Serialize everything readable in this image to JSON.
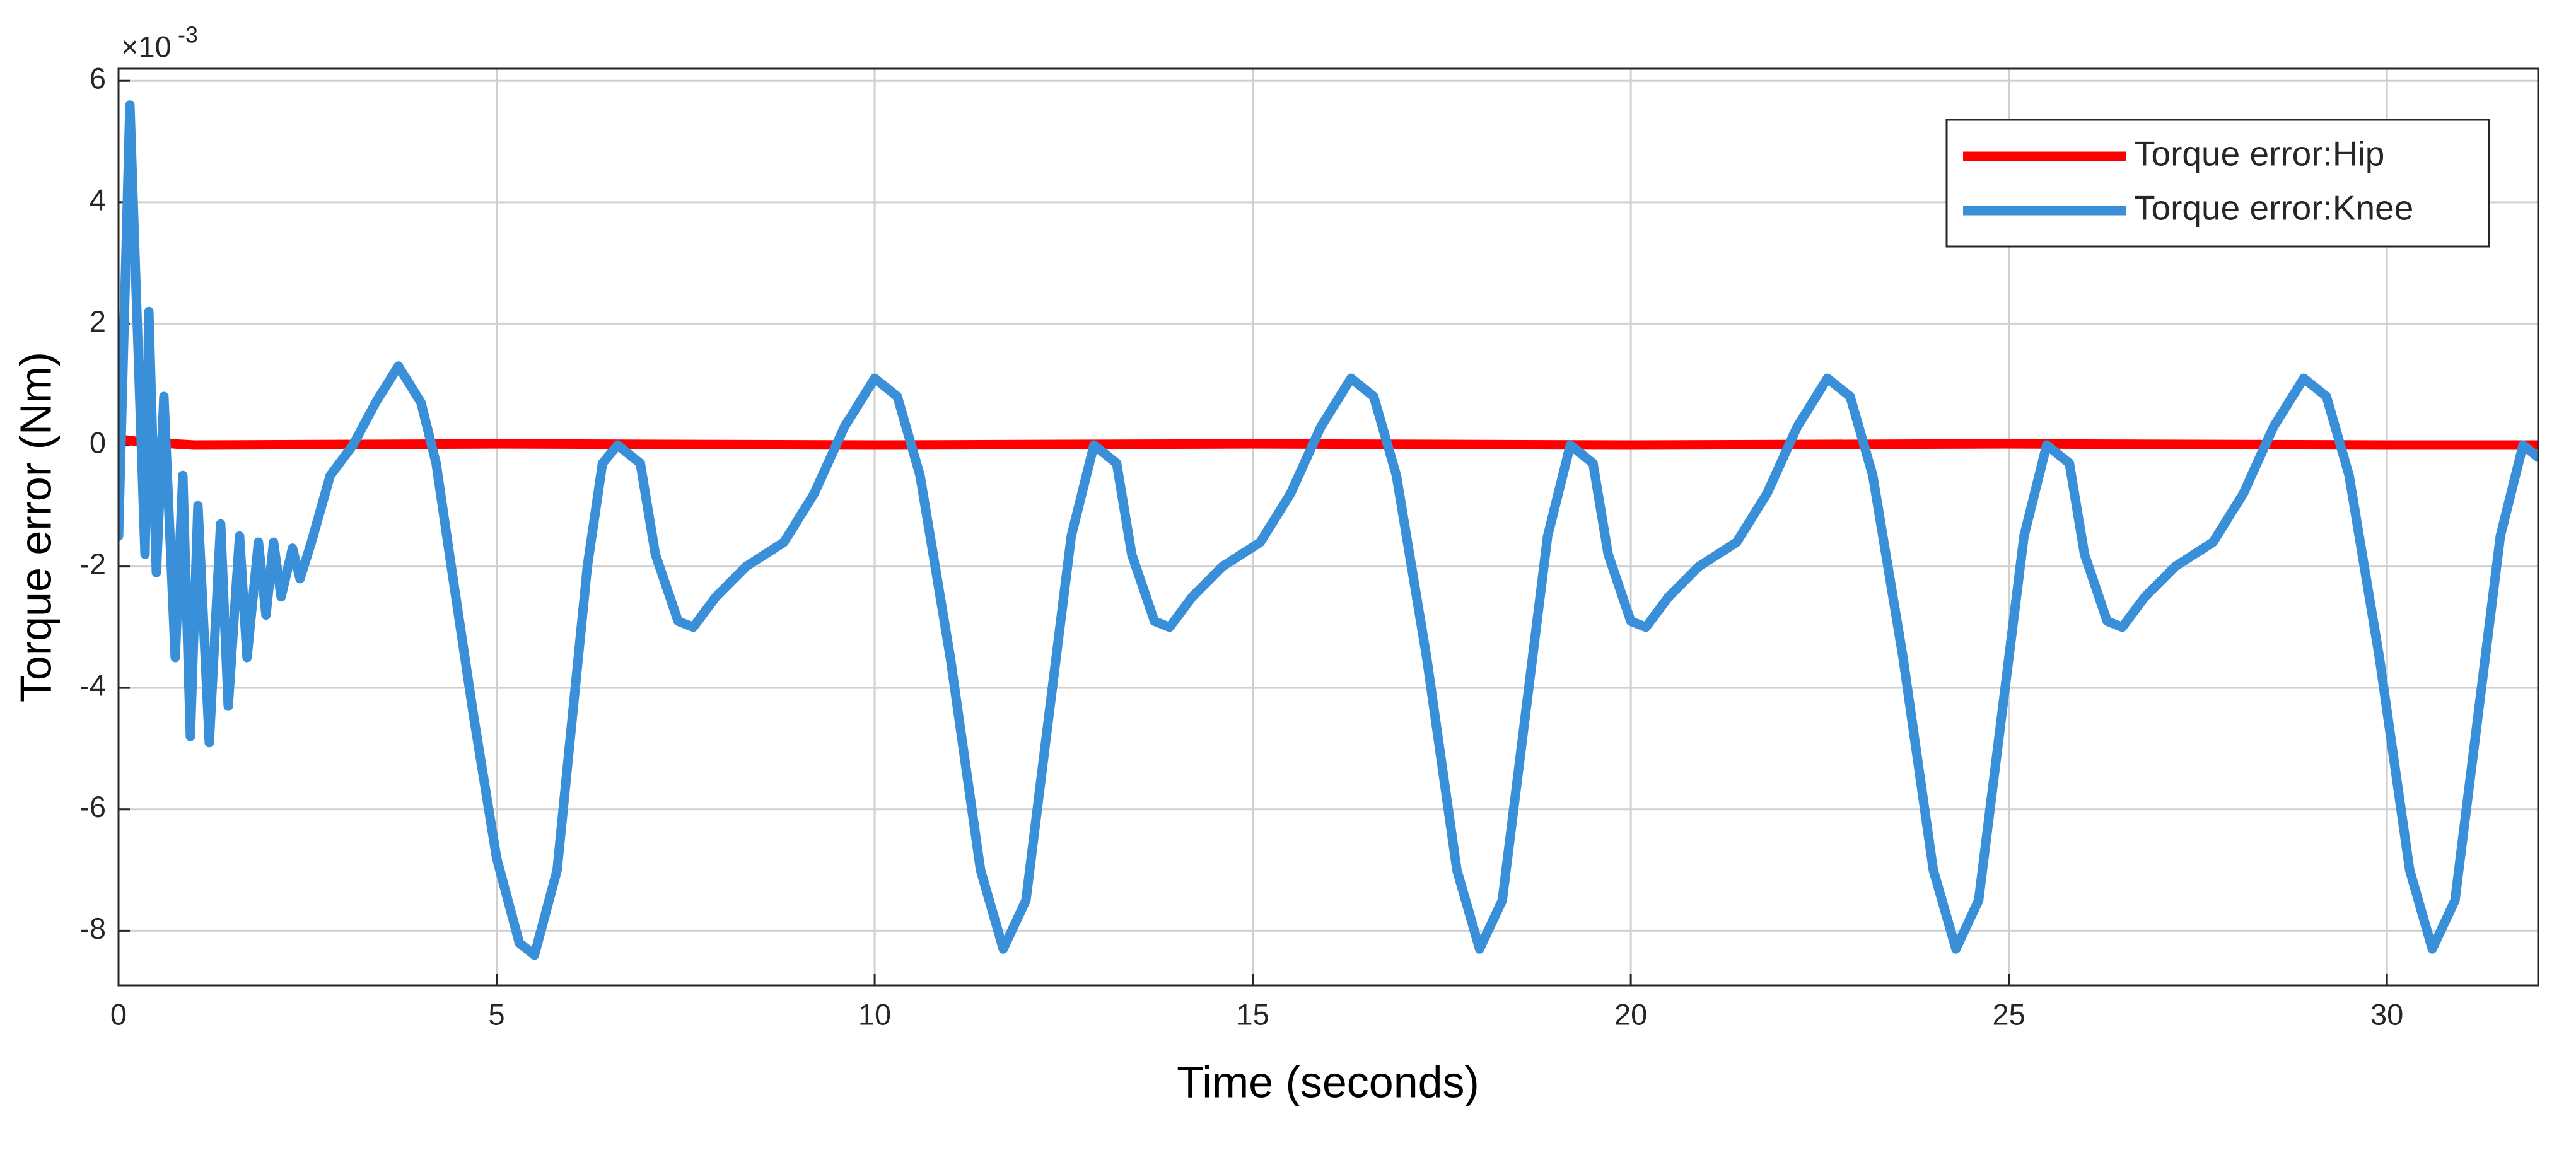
{
  "chart_data": {
    "type": "line",
    "xlabel": "Time (seconds)",
    "ylabel": "Torque error (Nm)",
    "y_multiplier": "×10",
    "y_multiplier_exp": "-3",
    "xlim": [
      0,
      32
    ],
    "xticks": [
      0,
      5,
      10,
      15,
      20,
      25,
      30
    ],
    "ylim": [
      -8.9,
      6.2
    ],
    "yticks": [
      -8,
      -6,
      -4,
      -2,
      0,
      2,
      4,
      6
    ],
    "grid": true,
    "legend": "upper right",
    "series": [
      {
        "name": "Torque error:Hip",
        "color": "#ff0000",
        "x": [
          0,
          0.3,
          1,
          5,
          10,
          15,
          20,
          25,
          30,
          32
        ],
        "values": [
          0.1,
          0.05,
          0,
          0.02,
          0,
          0.02,
          0,
          0.02,
          0,
          0
        ]
      },
      {
        "name": "Torque error:Knee",
        "color": "#3a8fd9",
        "x": [
          0,
          0.15,
          0.35,
          0.4,
          0.5,
          0.6,
          0.75,
          0.85,
          0.95,
          1.05,
          1.2,
          1.35,
          1.45,
          1.6,
          1.7,
          1.85,
          1.95,
          2.05,
          2.15,
          2.3,
          2.4,
          2.55,
          2.8,
          3.1,
          3.4,
          3.7,
          4.0,
          4.2,
          4.4,
          4.7,
          5.0,
          5.3,
          5.5,
          5.8,
          6.0,
          6.2,
          6.4,
          6.6,
          6.9,
          7.1,
          7.4,
          7.6,
          7.9,
          8.3,
          8.8,
          9.2,
          9.6,
          10.0,
          10.3,
          10.6,
          11.0,
          11.4,
          11.7,
          12.0,
          12.3,
          12.6,
          12.9,
          13.2,
          13.4,
          13.7,
          13.9,
          14.2,
          14.6,
          15.1,
          15.5,
          15.9,
          16.3,
          16.6,
          16.9,
          17.3,
          17.7,
          18.0,
          18.3,
          18.6,
          18.9,
          19.2,
          19.5,
          19.7,
          20.0,
          20.2,
          20.5,
          20.9,
          21.4,
          21.8,
          22.2,
          22.6,
          22.9,
          23.2,
          23.6,
          24.0,
          24.3,
          24.6,
          24.9,
          25.2,
          25.5,
          25.8,
          26.0,
          26.3,
          26.5,
          26.8,
          27.2,
          27.7,
          28.1,
          28.5,
          28.9,
          29.2,
          29.5,
          29.9,
          30.3,
          30.6,
          30.9,
          31.2,
          31.5,
          31.8,
          32.0
        ],
        "values": [
          -1.5,
          5.6,
          -1.8,
          2.2,
          -2.1,
          0.8,
          -3.5,
          -0.5,
          -4.8,
          -1.0,
          -4.9,
          -1.3,
          -4.3,
          -1.5,
          -3.5,
          -1.6,
          -2.8,
          -1.6,
          -2.5,
          -1.7,
          -2.2,
          -1.6,
          -0.5,
          0,
          0.7,
          1.3,
          0.7,
          -0.3,
          -2.0,
          -4.5,
          -6.8,
          -8.2,
          -8.4,
          -7.0,
          -4.5,
          -2.0,
          -0.3,
          0,
          -0.3,
          -1.8,
          -2.9,
          -3.0,
          -2.5,
          -2.0,
          -1.6,
          -0.8,
          0.3,
          1.1,
          0.8,
          -0.5,
          -3.5,
          -7.0,
          -8.3,
          -7.5,
          -4.5,
          -1.5,
          0,
          -0.3,
          -1.8,
          -2.9,
          -3.0,
          -2.5,
          -2.0,
          -1.6,
          -0.8,
          0.3,
          1.1,
          0.8,
          -0.5,
          -3.5,
          -7.0,
          -8.3,
          -7.5,
          -4.5,
          -1.5,
          0,
          -0.3,
          -1.8,
          -2.9,
          -3.0,
          -2.5,
          -2.0,
          -1.6,
          -0.8,
          0.3,
          1.1,
          0.8,
          -0.5,
          -3.5,
          -7.0,
          -8.3,
          -7.5,
          -4.5,
          -1.5,
          0,
          -0.3,
          -1.8,
          -2.9,
          -3.0,
          -2.5,
          -2.0,
          -1.6,
          -0.8,
          0.3,
          1.1,
          0.8,
          -0.5,
          -3.5,
          -7.0,
          -8.3,
          -7.5,
          -4.5,
          -1.5,
          0,
          -0.2
        ]
      }
    ]
  }
}
